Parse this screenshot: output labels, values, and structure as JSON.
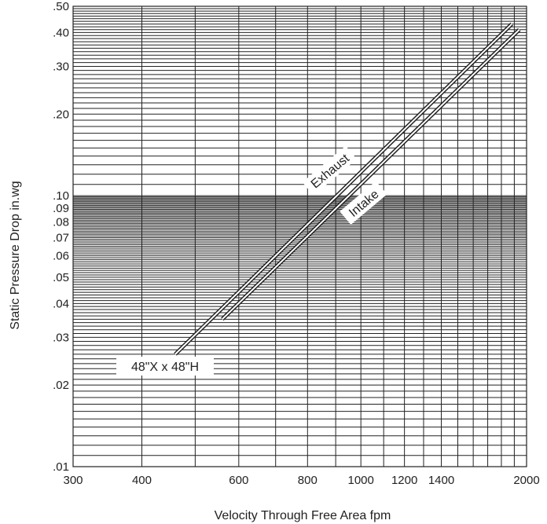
{
  "chart_data": {
    "type": "line",
    "title": "",
    "xlabel": "Velocity Through Free Area fpm",
    "ylabel": "Static Pressure Drop in.wg",
    "xscale": "log",
    "yscale": "log",
    "xlim": [
      300,
      2000
    ],
    "ylim": [
      0.01,
      0.5
    ],
    "grid": true,
    "legend": "none",
    "x_tick_labels": [
      "300",
      "400",
      "600",
      "800",
      "1000",
      "1200",
      "1400",
      "2000"
    ],
    "y_tick_labels": [
      ".50",
      ".40",
      ".30",
      ".20",
      ".10",
      ".09",
      ".08",
      ".07",
      ".06",
      ".05",
      ".04",
      ".03",
      ".02",
      ".01"
    ],
    "series": [
      {
        "name": "Exhaust",
        "x": [
          460,
          1880
        ],
        "y": [
          0.026,
          0.43
        ]
      },
      {
        "name": "Intake",
        "x": [
          560,
          1940
        ],
        "y": [
          0.035,
          0.41
        ]
      }
    ],
    "annotations": {
      "exhaust": "Exhaust",
      "intake": "Intake",
      "size": "48\"X x 48\"H"
    }
  }
}
